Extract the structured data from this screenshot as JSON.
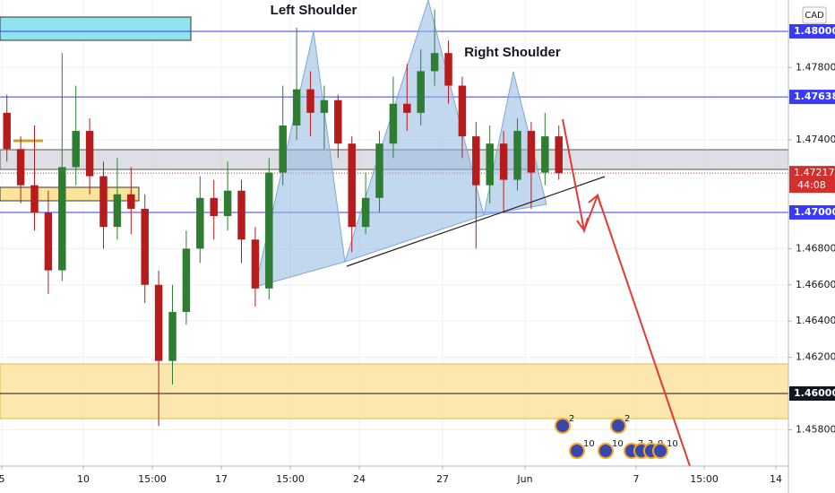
{
  "chart_data": {
    "type": "candlestick",
    "currency": "CAD",
    "annotations": [
      "Left Shoulder",
      "Right Shoulder"
    ],
    "x": [
      0,
      1,
      2,
      3,
      4,
      5,
      6,
      7,
      8,
      9,
      10,
      11,
      12,
      13,
      14,
      15,
      16,
      17,
      18,
      19,
      20,
      21,
      22,
      23,
      24,
      25,
      26,
      27,
      28,
      29,
      30,
      31,
      32,
      33,
      34,
      35,
      36,
      37,
      38,
      39,
      40
    ],
    "open": [
      1.4755,
      1.4735,
      1.4715,
      1.47,
      1.4668,
      1.4725,
      1.4745,
      1.472,
      1.4692,
      1.471,
      1.4702,
      1.466,
      1.4618,
      1.4645,
      1.468,
      1.4708,
      1.4698,
      1.4712,
      1.4685,
      1.4658,
      1.4722,
      1.4748,
      1.4768,
      1.4755,
      1.4762,
      1.4738,
      1.4692,
      1.4708,
      1.4738,
      1.476,
      1.4755,
      1.4778,
      1.4788,
      1.477,
      1.4742,
      1.4715,
      1.4738,
      1.4718,
      1.4745,
      1.4722,
      1.4742
    ],
    "high": [
      1.4765,
      1.4742,
      1.4748,
      1.4712,
      1.4788,
      1.477,
      1.4752,
      1.4728,
      1.473,
      1.4725,
      1.471,
      1.4668,
      1.466,
      1.469,
      1.472,
      1.4718,
      1.4728,
      1.4718,
      1.4692,
      1.473,
      1.477,
      1.4802,
      1.4778,
      1.477,
      1.4765,
      1.4742,
      1.4722,
      1.4745,
      1.4775,
      1.4782,
      1.479,
      1.4812,
      1.4795,
      1.4775,
      1.475,
      1.4748,
      1.4745,
      1.4752,
      1.475,
      1.4755,
      1.4748
    ],
    "low": [
      1.4728,
      1.4705,
      1.469,
      1.4655,
      1.4662,
      1.4715,
      1.471,
      1.468,
      1.4685,
      1.4688,
      1.465,
      1.4582,
      1.4605,
      1.4638,
      1.4672,
      1.4685,
      1.469,
      1.4672,
      1.4648,
      1.4652,
      1.4715,
      1.474,
      1.4742,
      1.4735,
      1.473,
      1.4678,
      1.4688,
      1.47,
      1.473,
      1.4745,
      1.4748,
      1.477,
      1.476,
      1.473,
      1.468,
      1.4705,
      1.47,
      1.4712,
      1.4702,
      1.4715,
      1.4718
    ],
    "close": [
      1.4735,
      1.4715,
      1.47,
      1.4668,
      1.4725,
      1.4745,
      1.472,
      1.4692,
      1.471,
      1.4702,
      1.466,
      1.4618,
      1.4645,
      1.468,
      1.4708,
      1.4698,
      1.4712,
      1.4685,
      1.4658,
      1.4722,
      1.4748,
      1.4768,
      1.4755,
      1.4762,
      1.4738,
      1.4692,
      1.4708,
      1.4738,
      1.476,
      1.4755,
      1.4778,
      1.4788,
      1.477,
      1.4742,
      1.4715,
      1.4738,
      1.4718,
      1.4745,
      1.4722,
      1.4742,
      1.47217
    ],
    "up_color": "#2e7d32",
    "down_color": "#b71c1c",
    "xlim": [
      -0.5,
      56.64
    ],
    "xticks": [
      {
        "value": -0.37,
        "label": "5"
      },
      {
        "value": 5.54,
        "label": "10"
      },
      {
        "value": 10.54,
        "label": "15:00"
      },
      {
        "value": 15.54,
        "label": "17"
      },
      {
        "value": 20.54,
        "label": "15:00"
      },
      {
        "value": 25.54,
        "label": "24"
      },
      {
        "value": 31.58,
        "label": "27"
      },
      {
        "value": 37.55,
        "label": "Jun"
      },
      {
        "value": 45.6,
        "label": "7"
      },
      {
        "value": 50.54,
        "label": "15:00"
      },
      {
        "value": 55.73,
        "label": "14"
      }
    ],
    "ylim": [
      1.45599,
      1.48173
    ],
    "yticks": [
      {
        "value": 1.478,
        "label": "1.47800"
      },
      {
        "value": 1.474,
        "label": "1.47400"
      },
      {
        "value": 1.468,
        "label": "1.46800"
      },
      {
        "value": 1.466,
        "label": "1.46600"
      },
      {
        "value": 1.464,
        "label": "1.46400"
      },
      {
        "value": 1.462,
        "label": "1.46200"
      },
      {
        "value": 1.458,
        "label": "1.45800"
      }
    ],
    "grid": true,
    "price_levels": [
      {
        "value": 1.48,
        "label": "1.48000",
        "color": "#3a3aff"
      },
      {
        "value": 1.47638,
        "label": "1.47638",
        "color": "#3a3aff"
      },
      {
        "value": 1.47,
        "label": "1.47000",
        "color": "#3a3aff"
      },
      {
        "value": 1.46,
        "label": "1.46000",
        "color": "#131722"
      }
    ],
    "last_price": {
      "value": 1.47217,
      "label": "1.47217",
      "countdown": "44:08",
      "color": "#d32f2f"
    },
    "events": [
      "2",
      "2",
      "10",
      "10",
      "7",
      "3",
      "0",
      "10"
    ]
  }
}
